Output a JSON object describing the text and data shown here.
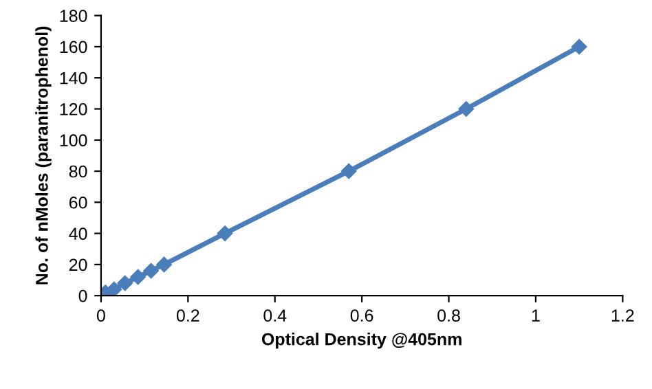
{
  "chart_data": {
    "type": "line",
    "xlabel": "Optical Density @405nm",
    "ylabel": "No. of nMoles (paranitrophenol)",
    "x": [
      0,
      0.01,
      0.03,
      0.055,
      0.085,
      0.115,
      0.145,
      0.285,
      0.57,
      0.84,
      1.1
    ],
    "series": [
      {
        "color": "#4a7ebb",
        "values": [
          0,
          2,
          4,
          8,
          12,
          16,
          20,
          40,
          80,
          120,
          160
        ]
      }
    ],
    "xlim": [
      0,
      1.2
    ],
    "xticks": [
      0,
      0.2,
      0.4,
      0.6,
      0.8,
      1,
      1.2
    ],
    "ylim": [
      0,
      180
    ],
    "yticks": [
      0,
      20,
      40,
      60,
      80,
      100,
      120,
      140,
      160,
      180
    ],
    "grid": false,
    "marker": "diamond",
    "line_style": "solid"
  }
}
